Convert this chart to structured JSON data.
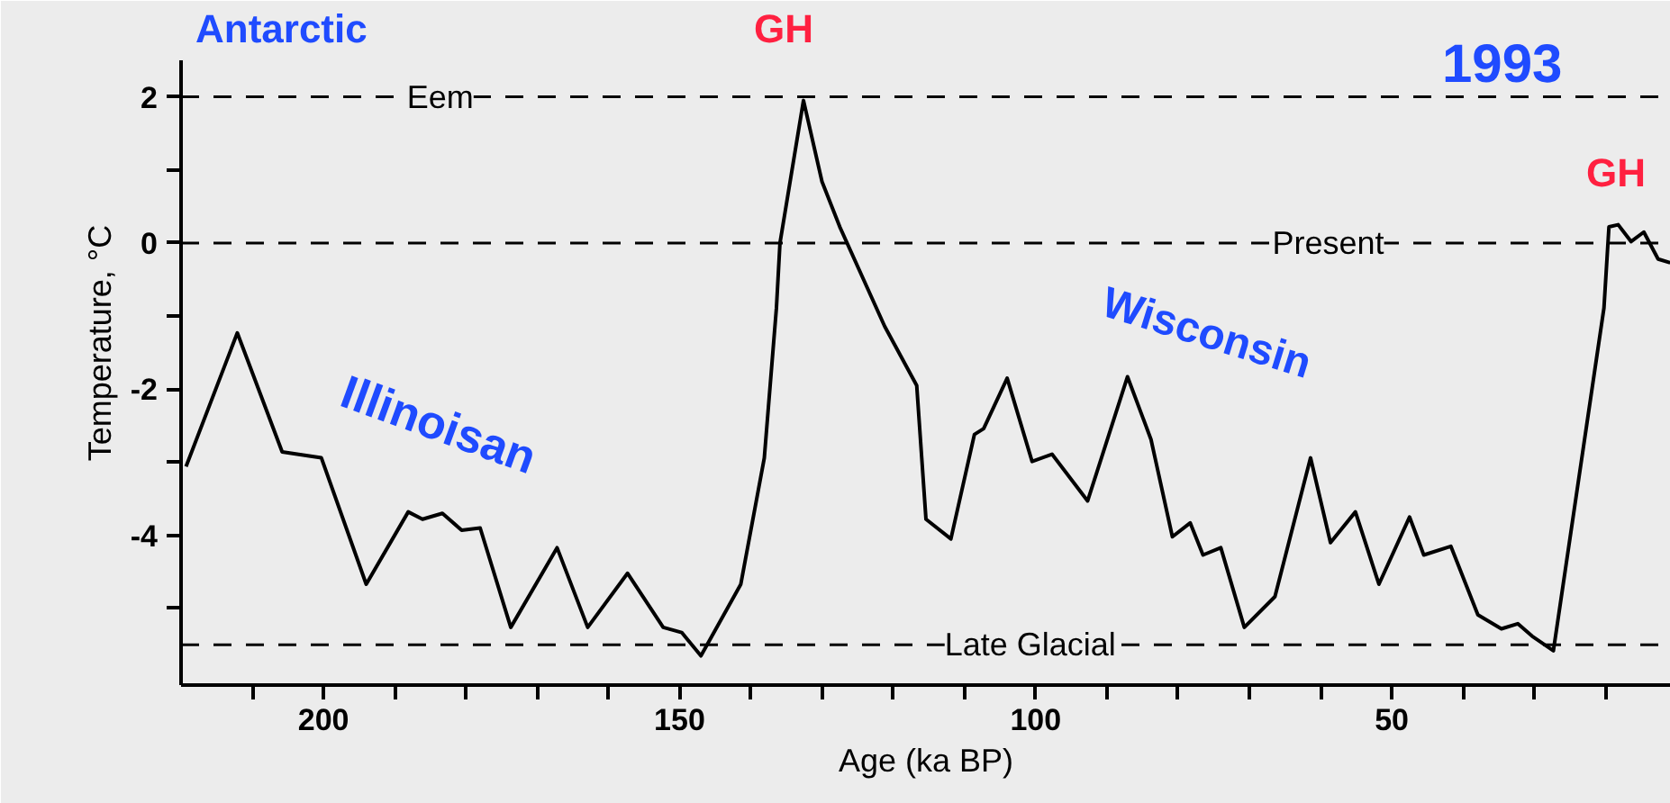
{
  "chart_data": {
    "type": "line",
    "xlabel": "Age (ka BP)",
    "ylabel": "Temperature, °C",
    "x": [
      219.3,
      212.1,
      205.8,
      200.3,
      194.0,
      188.1,
      186.1,
      183.3,
      180.6,
      178,
      173.7,
      167.2,
      162.9,
      157.3,
      152.3,
      149.7,
      147,
      141.4,
      138.1,
      136.4,
      135.9,
      132.6,
      130,
      127.5,
      121.2,
      116.7,
      115.4,
      111.9,
      108.6,
      107.3,
      104,
      100.5,
      97.7,
      92.7,
      87.1,
      83.8,
      80.8,
      78.3,
      76.5,
      74,
      70.7,
      66.4,
      61.4,
      58.6,
      55.1,
      51.8,
      47.5,
      45.5,
      41.7,
      37.9,
      34.6,
      32.3,
      30.3,
      27.3,
      22.7,
      20.2,
      19.5,
      18.2,
      16.4,
      14.6,
      12.6,
      10.9
    ],
    "series": [
      {
        "color": "#000000",
        "values": [
          -3.06,
          -1.23,
          -2.86,
          -2.94,
          -4.67,
          -3.68,
          -3.78,
          -3.7,
          -3.93,
          -3.9,
          -5.26,
          -4.17,
          -5.26,
          -4.52,
          -5.26,
          -5.33,
          -5.65,
          -4.67,
          -2.94,
          -0.89,
          0,
          1.95,
          0.84,
          0.22,
          -1.14,
          -1.95,
          -3.78,
          -4.05,
          -2.62,
          -2.54,
          -1.85,
          -2.99,
          -2.89,
          -3.53,
          -1.83,
          -2.69,
          -4.02,
          -3.83,
          -4.27,
          -4.17,
          -5.26,
          -4.84,
          -2.94,
          -4.1,
          -3.68,
          -4.67,
          -3.75,
          -4.27,
          -4.15,
          -5.09,
          -5.28,
          -5.21,
          -5.38,
          -5.58,
          -2.54,
          -0.89,
          0.22,
          0.25,
          0.02,
          0.15,
          -0.22,
          -0.27
        ]
      }
    ],
    "xlim": [
      220,
      10.8
    ],
    "ylim": [
      -6.05,
      2.5
    ],
    "xticks": [
      {
        "value": 210,
        "label": null
      },
      200,
      {
        "value": 190,
        "label": null
      },
      {
        "value": 180,
        "label": null
      },
      {
        "value": 170,
        "label": null
      },
      {
        "value": 160,
        "label": null
      },
      150,
      {
        "value": 140,
        "label": null
      },
      {
        "value": 130,
        "label": null
      },
      {
        "value": 120,
        "label": null
      },
      {
        "value": 110,
        "label": null
      },
      100,
      {
        "value": 90,
        "label": null
      },
      {
        "value": 80,
        "label": null
      },
      {
        "value": 70,
        "label": null
      },
      {
        "value": 60,
        "label": null
      },
      50,
      {
        "value": 40,
        "label": null
      },
      {
        "value": 30,
        "label": null
      },
      {
        "value": 20,
        "label": null
      }
    ],
    "yticks": [
      2,
      {
        "value": 1,
        "label": null
      },
      0,
      {
        "value": -1,
        "label": null
      },
      -2,
      {
        "value": -3,
        "label": null
      },
      -4,
      {
        "value": -5,
        "label": null
      }
    ],
    "ref_lines": [
      {
        "axis": "y",
        "value": 2,
        "label": "Eem",
        "line_style": "dashed"
      },
      {
        "axis": "y",
        "value": 0,
        "label": "Present",
        "line_style": "dashed"
      },
      {
        "axis": "y",
        "value": -5.5,
        "label": "Late Glacial",
        "line_style": "dashed"
      }
    ],
    "annotations": [
      "Antarctic",
      "1993",
      "GH",
      "GH",
      "Illinoisan",
      "Wisconsin"
    ],
    "grid": false,
    "marker": "none",
    "line_style": "solid"
  }
}
